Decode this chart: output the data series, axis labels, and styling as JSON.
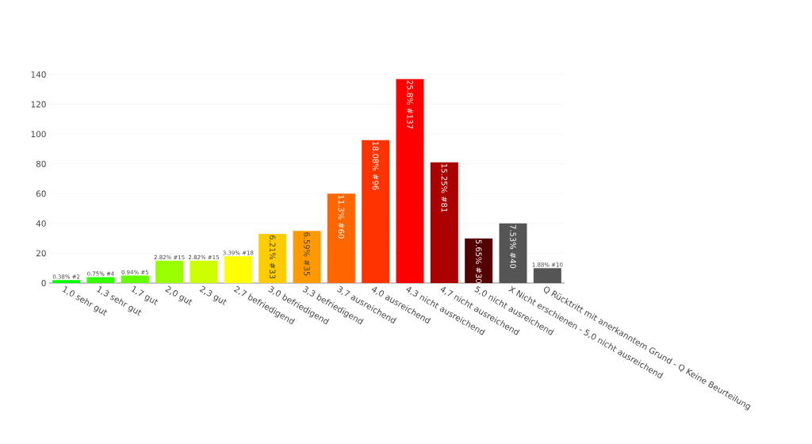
{
  "chart_data": {
    "type": "bar",
    "categories": [
      "1,0 sehr gut",
      "1,3 sehr gut",
      "1,7 gut",
      "2,0 gut",
      "2,3 gut",
      "2,7 befriedigend",
      "3,0 befriedigend",
      "3,3 befriedigend",
      "3,7 ausreichend",
      "4,0 ausreichend",
      "4,3 nicht ausreichend",
      "4,7 nicht ausreichend",
      "5,0 nicht ausreichend",
      "X Nicht erschienen - 5,0 nicht ausreichend",
      "Q Rücktritt mit anerkanntem Grund - Q Keine Beurteilung"
    ],
    "values": [
      2,
      4,
      5,
      15,
      15,
      18,
      33,
      35,
      60,
      96,
      137,
      81,
      30,
      40,
      10
    ],
    "colors": [
      "#00ff00",
      "#33ff00",
      "#66ff00",
      "#99ff00",
      "#ccff00",
      "#ffff00",
      "#ffcc00",
      "#ff9900",
      "#ff6600",
      "#ff3300",
      "#ff0000",
      "#aa0000",
      "#550000",
      "#555555",
      "#555555"
    ],
    "value_labels": [
      "0.38% #2",
      "0.75% #4",
      "0.94% #5",
      "2.82% #15",
      "2.82% #15",
      "3.39% #18",
      "6.21% #33",
      "6.59% #35",
      "11.3% #60",
      "18.08% #96",
      "25.8% #137",
      "15.25% #81",
      "5.65% #30",
      "7.53% #40",
      "1.88% #10"
    ],
    "ylim": [
      0,
      140
    ],
    "yticks": [
      0,
      20,
      40,
      60,
      80,
      100,
      120,
      140
    ],
    "grid": "y"
  }
}
